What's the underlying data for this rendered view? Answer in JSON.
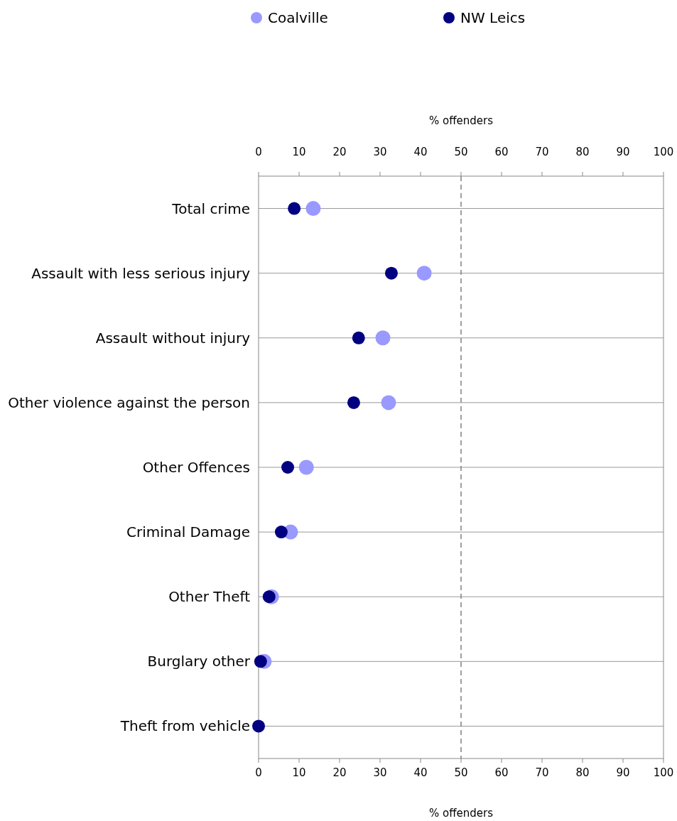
{
  "chart_data": {
    "type": "scatter",
    "xlabel": "% offenders",
    "x2label": "% offenders",
    "categories": [
      "Total crime",
      "Assault with less serious injury",
      "Assault without injury",
      "Other violence against the person",
      "Other Offences",
      "Criminal Damage",
      "Other Theft",
      "Burglary other",
      "Theft from vehicle"
    ],
    "orientation": "horizontal",
    "series": [
      {
        "name": "Coalville",
        "color": "#9999ff",
        "values": [
          13.5,
          40.9,
          30.7,
          32.1,
          11.8,
          7.9,
          3.2,
          1.4,
          null
        ]
      },
      {
        "name": "NW Leics",
        "color": "#000080",
        "values": [
          8.8,
          32.8,
          24.7,
          23.5,
          7.2,
          5.6,
          2.6,
          0.5,
          0
        ]
      }
    ],
    "xlim": [
      0,
      100
    ],
    "xticks": [
      0,
      10,
      20,
      30,
      40,
      50,
      60,
      70,
      80,
      90,
      100
    ],
    "x2lim": [
      0,
      100
    ],
    "x2ticks": [
      0,
      10,
      20,
      30,
      40,
      50,
      60,
      70,
      80,
      90,
      100
    ],
    "ref_lines": [
      {
        "axis": "x",
        "value": 50,
        "color": "#808080",
        "line_style": "dashed"
      }
    ],
    "grid": "y",
    "legend": "top",
    "marker": "circle"
  }
}
